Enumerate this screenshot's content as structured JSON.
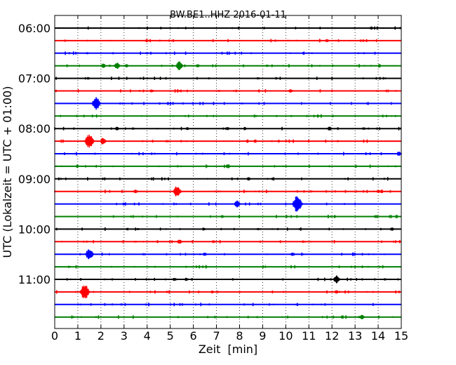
{
  "chart_data": {
    "type": "line",
    "title": "BW.BE1..HHZ 2016-01-11",
    "xlabel": "Zeit  [min]",
    "ylabel": "UTC (Lokalzeit = UTC + 01:00)",
    "xlim": [
      0,
      15
    ],
    "x_ticks": [
      "0",
      "1",
      "2",
      "3",
      "4",
      "5",
      "6",
      "7",
      "8",
      "9",
      "10",
      "11",
      "12",
      "13",
      "14",
      "15"
    ],
    "y_tick_labels": [
      "06:00",
      "07:00",
      "08:00",
      "09:00",
      "10:00",
      "11:00"
    ],
    "grid": "vertical dotted",
    "trace_colors": [
      "#000000",
      "#ff0000",
      "#0000ff",
      "#008000"
    ],
    "series": [
      {
        "start": "06:00",
        "events": [
          {
            "min": 6.6,
            "amp": 1
          },
          {
            "min": 7.6,
            "amp": 0.6
          }
        ]
      },
      {
        "start": "06:15",
        "events": [
          {
            "min": 4.0,
            "amp": 3
          },
          {
            "min": 9.1,
            "amp": 1
          }
        ]
      },
      {
        "start": "06:30",
        "events": [
          {
            "min": 1.4,
            "amp": 2
          },
          {
            "min": 4.0,
            "amp": 2
          }
        ]
      },
      {
        "start": "06:45",
        "events": [
          {
            "min": 2.1,
            "amp": 4
          },
          {
            "min": 2.7,
            "amp": 6
          },
          {
            "min": 3.1,
            "amp": 3
          },
          {
            "min": 5.4,
            "amp": 8
          },
          {
            "min": 6.2,
            "amp": 3
          },
          {
            "min": 9.2,
            "amp": 2
          }
        ]
      },
      {
        "start": "07:00",
        "events": [
          {
            "min": 1.2,
            "amp": 1
          },
          {
            "min": 8.8,
            "amp": 2
          }
        ]
      },
      {
        "start": "07:15",
        "events": [
          {
            "min": 4.2,
            "amp": 3
          },
          {
            "min": 5.4,
            "amp": 2
          },
          {
            "min": 7.1,
            "amp": 2
          },
          {
            "min": 10.2,
            "amp": 3
          }
        ]
      },
      {
        "start": "07:30",
        "events": [
          {
            "min": 1.8,
            "amp": 11
          },
          {
            "min": 4.9,
            "amp": 2
          },
          {
            "min": 8.1,
            "amp": 2
          }
        ]
      },
      {
        "start": "07:45",
        "events": [
          {
            "min": 4.6,
            "amp": 1
          },
          {
            "min": 11.4,
            "amp": 2
          }
        ]
      },
      {
        "start": "08:00",
        "events": [
          {
            "min": 2.7,
            "amp": 3
          },
          {
            "min": 3.4,
            "amp": 2
          },
          {
            "min": 11.9,
            "amp": 4
          }
        ]
      },
      {
        "start": "08:15",
        "events": [
          {
            "min": 1.5,
            "amp": 12
          },
          {
            "min": 2.1,
            "amp": 6
          }
        ]
      },
      {
        "start": "08:30",
        "events": [
          {
            "min": 14.9,
            "amp": 4
          }
        ]
      },
      {
        "start": "08:45",
        "events": [
          {
            "min": 7.5,
            "amp": 4
          },
          {
            "min": 12.6,
            "amp": 1
          }
        ]
      },
      {
        "start": "09:00",
        "events": [
          {
            "min": 8.4,
            "amp": 3
          },
          {
            "min": 10.2,
            "amp": 1
          }
        ]
      },
      {
        "start": "09:15",
        "events": [
          {
            "min": 3.5,
            "amp": 3
          },
          {
            "min": 5.3,
            "amp": 10
          },
          {
            "min": 11.1,
            "amp": 2
          },
          {
            "min": 14.0,
            "amp": 3
          }
        ]
      },
      {
        "start": "09:30",
        "events": [
          {
            "min": 7.9,
            "amp": 6
          },
          {
            "min": 10.5,
            "amp": 14
          }
        ]
      },
      {
        "start": "09:45",
        "events": [
          {
            "min": 13.9,
            "amp": 3
          }
        ]
      },
      {
        "start": "10:00",
        "events": [
          {
            "min": 3.6,
            "amp": 2
          },
          {
            "min": 8.8,
            "amp": 2
          },
          {
            "min": 14.6,
            "amp": 3
          }
        ]
      },
      {
        "start": "10:15",
        "events": [
          {
            "min": 5.4,
            "amp": 4
          },
          {
            "min": 6.9,
            "amp": 2
          }
        ]
      },
      {
        "start": "10:30",
        "events": [
          {
            "min": 1.5,
            "amp": 10
          },
          {
            "min": 6.5,
            "amp": 3
          },
          {
            "min": 10.3,
            "amp": 3
          }
        ]
      },
      {
        "start": "10:45",
        "events": []
      },
      {
        "start": "11:00",
        "events": [
          {
            "min": 5.2,
            "amp": 3
          },
          {
            "min": 5.7,
            "amp": 3
          },
          {
            "min": 12.2,
            "amp": 7
          },
          {
            "min": 14.3,
            "amp": 2
          }
        ]
      },
      {
        "start": "11:15",
        "events": [
          {
            "min": 1.3,
            "amp": 13
          },
          {
            "min": 12.2,
            "amp": 3
          }
        ]
      },
      {
        "start": "11:30",
        "events": [
          {
            "min": 2.9,
            "amp": 2
          }
        ]
      },
      {
        "start": "11:45",
        "events": [
          {
            "min": 13.3,
            "amp": 4
          }
        ]
      }
    ]
  }
}
